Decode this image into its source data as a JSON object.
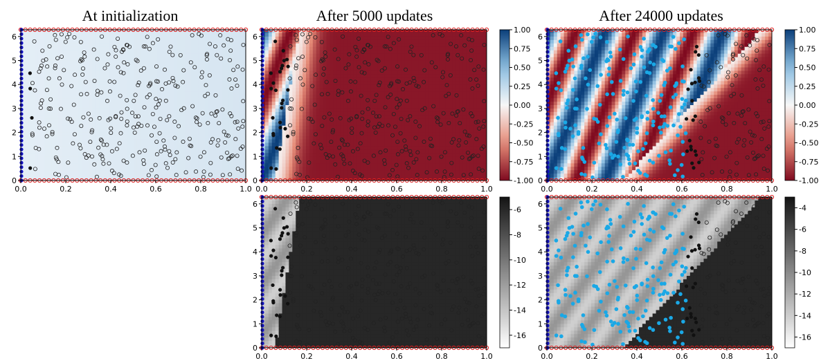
{
  "titles": {
    "init": "At initialization",
    "mid": "After 5000 updates",
    "final": "After 24000 updates"
  },
  "colors": {
    "boundary_point": "#e02020",
    "initial_point": "#1010c0",
    "accepted_point": "#111111",
    "interior_point": "#1aa8e6",
    "unused_point": "#222222",
    "field_positive": "#0b3f7a",
    "field_zero": "#f7f7f7",
    "field_negative": "#7f0a1f"
  },
  "chart_data": [
    {
      "id": "init",
      "type": "heatmap",
      "title": "At initialization",
      "xlim": [
        0,
        1
      ],
      "ylim": [
        0,
        6.283
      ],
      "x_ticks": [
        "0.0",
        "0.2",
        "0.4",
        "0.6",
        "0.8",
        "1.0"
      ],
      "y_ticks": [
        "0",
        "1",
        "2",
        "3",
        "4",
        "5",
        "6"
      ],
      "field": "near-zero predicted solution (pale blue)",
      "trained_region_x": 0.05,
      "colorbar": null
    },
    {
      "id": "mid-solution",
      "type": "heatmap",
      "title": "After 5000 updates",
      "xlim": [
        0,
        1
      ],
      "ylim": [
        0,
        6.283
      ],
      "x_ticks": [
        "0.0",
        "0.2",
        "0.4",
        "0.6",
        "0.8",
        "1.0"
      ],
      "y_ticks": [
        "0",
        "1",
        "2",
        "3",
        "4",
        "5",
        "6"
      ],
      "colormap": "RdBu",
      "trained_region_x": 0.12,
      "colorbar": {
        "ticks": [
          "1.00",
          "0.75",
          "0.50",
          "0.25",
          "0.00",
          "-0.25",
          "-0.50",
          "-0.75",
          "-1.00"
        ],
        "range": [
          -1,
          1
        ]
      }
    },
    {
      "id": "final-solution",
      "type": "heatmap",
      "title": "After 24000 updates",
      "xlim": [
        0,
        1
      ],
      "ylim": [
        0,
        6.283
      ],
      "x_ticks": [
        "0.0",
        "0.2",
        "0.4",
        "0.6",
        "0.8",
        "1.0"
      ],
      "y_ticks": [
        "0",
        "1",
        "2",
        "3",
        "4",
        "5",
        "6"
      ],
      "colormap": "RdBu",
      "trained_region_x": 0.68,
      "colorbar": {
        "ticks": [
          "1.00",
          "0.75",
          "0.50",
          "0.25",
          "0.00",
          "-0.25",
          "-0.50",
          "-0.75",
          "-1.00"
        ],
        "range": [
          -1,
          1
        ]
      }
    },
    {
      "id": "mid-residual",
      "type": "heatmap",
      "xlim": [
        0,
        1
      ],
      "ylim": [
        0,
        6.283
      ],
      "x_ticks": [
        "0.0",
        "0.2",
        "0.4",
        "0.6",
        "0.8",
        "1.0"
      ],
      "y_ticks": [
        "0",
        "1",
        "2",
        "3",
        "4",
        "5",
        "6"
      ],
      "colormap": "Greys (log residual)",
      "trained_region_x": 0.12,
      "colorbar": {
        "ticks": [
          "-6",
          "-8",
          "-10",
          "-12",
          "-14",
          "-16"
        ],
        "range": [
          -17,
          -5
        ]
      }
    },
    {
      "id": "final-residual",
      "type": "heatmap",
      "xlim": [
        0,
        1
      ],
      "ylim": [
        0,
        6.283
      ],
      "x_ticks": [
        "0.0",
        "0.2",
        "0.4",
        "0.6",
        "0.8",
        "1.0"
      ],
      "y_ticks": [
        "0",
        "1",
        "2",
        "3",
        "4",
        "5",
        "6"
      ],
      "colormap": "Greys (log residual)",
      "trained_region_x": 0.68,
      "colorbar": {
        "ticks": [
          "-4",
          "-6",
          "-8",
          "-10",
          "-12",
          "-14",
          "-16"
        ],
        "range": [
          -17,
          -3
        ]
      }
    }
  ]
}
